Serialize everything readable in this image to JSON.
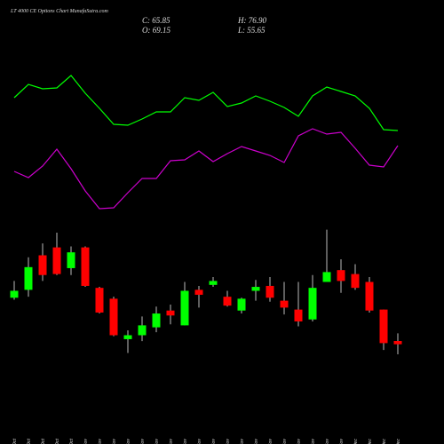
{
  "chart_data": [
    {
      "type": "line",
      "ylim": [
        0,
        240
      ],
      "series": [
        {
          "color": "#00ff00",
          "values": [
            190,
            205,
            200,
            201,
            215,
            195,
            178,
            160,
            159,
            166,
            174,
            174,
            190,
            187,
            196,
            180,
            184,
            192,
            186,
            179,
            169,
            192,
            202,
            197,
            192,
            178,
            154,
            153
          ]
        },
        {
          "color": "#cc00cc",
          "values": [
            107,
            100,
            113,
            132,
            110,
            85,
            65,
            66,
            83,
            99,
            99,
            119,
            120,
            130,
            118,
            127,
            135,
            130,
            125,
            117,
            147,
            155,
            149,
            151,
            133,
            114,
            112,
            136
          ]
        }
      ]
    },
    {
      "type": "candlestick",
      "title": "LT 4000 CE Options Chart MunafaSutra.com",
      "header": [
        "C: 65.85",
        "H: 76.90",
        "O: 69.15",
        "L: 55.65"
      ],
      "categories": [
        "27 Oct",
        "28 Oct",
        "29 Oct",
        "30 Oct",
        "31 Oct",
        "03 Nov",
        "04 Nov",
        "06 Nov",
        "07 Nov",
        "10 Nov",
        "11 Nov",
        "12 Nov",
        "13 Nov",
        "14 Nov",
        "17 Nov",
        "18 Nov",
        "19 Nov",
        "20 Nov",
        "21 Nov",
        "24 Nov",
        "25 Nov",
        "26 Nov",
        "27 Nov",
        "28 Nov",
        "01 Dec",
        "02 Dec",
        "03 Dec",
        "04 Dec"
      ],
      "ylim": [
        54.75,
        189.75
      ],
      "up_color": "#00ff00",
      "down_color": "#ff0000",
      "open": [
        113,
        121,
        156,
        164,
        143,
        164,
        123,
        112,
        71,
        75,
        83,
        100,
        85,
        121,
        126,
        114,
        100,
        120,
        125,
        110,
        101,
        91,
        129,
        141,
        137,
        129,
        101,
        69.15
      ],
      "close": [
        120,
        144,
        136,
        137,
        159,
        125,
        98,
        75,
        75,
        85,
        97,
        95,
        120,
        116,
        130,
        105,
        112,
        124,
        113,
        103,
        89,
        123,
        139,
        130,
        123,
        100,
        67,
        65.85
      ],
      "high": [
        130,
        154,
        168,
        179,
        165,
        165,
        124,
        114,
        80,
        94,
        104,
        106,
        129,
        125,
        134,
        120,
        113,
        131,
        134,
        129,
        129,
        136,
        182,
        152,
        147,
        134,
        101,
        76.9
      ],
      "low": [
        111,
        114,
        130,
        136,
        136,
        124,
        97,
        74,
        57,
        69,
        78,
        86,
        85,
        103,
        124,
        104,
        97,
        110,
        109,
        96,
        84,
        89,
        129,
        118,
        121,
        98,
        60,
        55.65
      ]
    }
  ]
}
